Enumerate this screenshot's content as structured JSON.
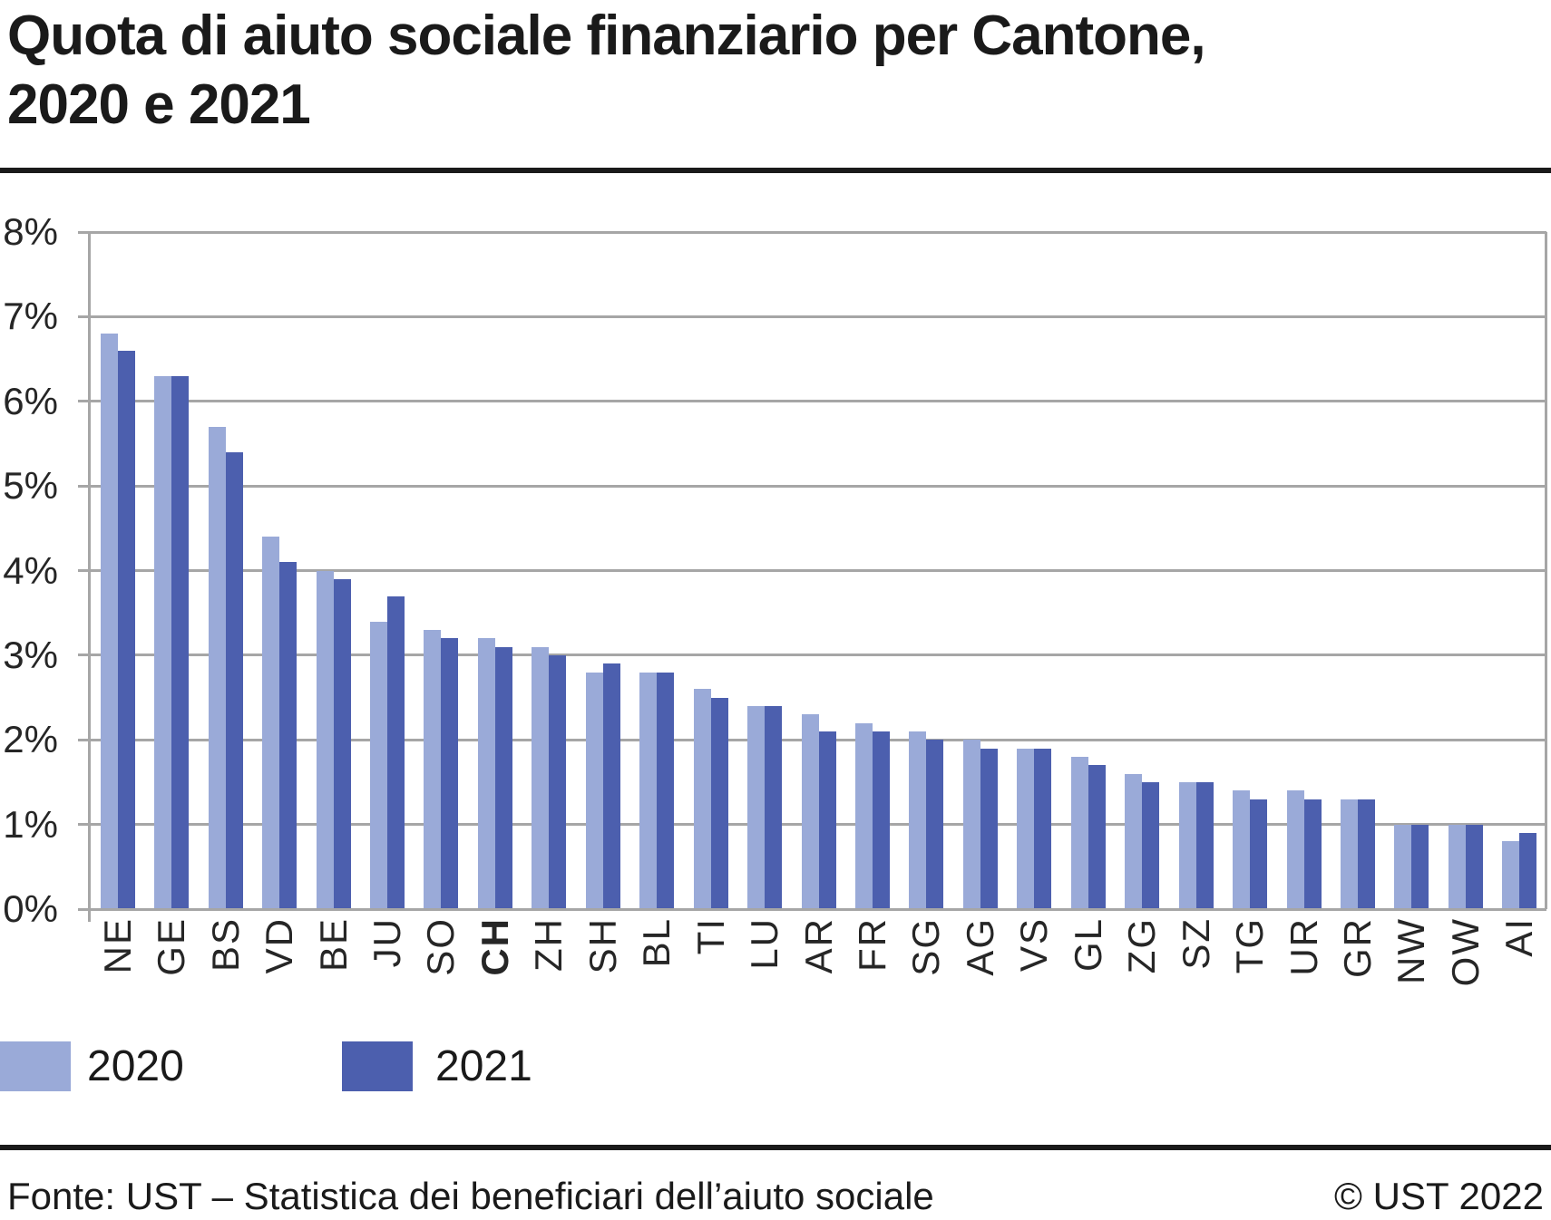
{
  "title": {
    "line1": "Quota di aiuto sociale finanziario per Cantone,",
    "line2": "2020 e 2021"
  },
  "chart_data": {
    "type": "bar",
    "grouped": true,
    "title": "Quota di aiuto sociale finanziario per Cantone, 2020 e 2021",
    "categories": [
      "NE",
      "GE",
      "BS",
      "VD",
      "BE",
      "JU",
      "SO",
      "CH",
      "ZH",
      "SH",
      "BL",
      "TI",
      "LU",
      "AR",
      "FR",
      "SG",
      "AG",
      "VS",
      "GL",
      "ZG",
      "SZ",
      "TG",
      "UR",
      "GR",
      "NW",
      "OW",
      "AI"
    ],
    "emphasized_category": "CH",
    "series": [
      {
        "name": "2020",
        "color": "#9AAAD8",
        "values": [
          6.8,
          6.3,
          5.7,
          4.4,
          4.0,
          3.4,
          3.3,
          3.2,
          3.1,
          2.8,
          2.8,
          2.6,
          2.4,
          2.3,
          2.2,
          2.1,
          2.0,
          1.9,
          1.8,
          1.6,
          1.5,
          1.4,
          1.4,
          1.3,
          1.0,
          1.0,
          0.8
        ]
      },
      {
        "name": "2021",
        "color": "#4C5FAE",
        "values": [
          6.6,
          6.3,
          5.4,
          4.1,
          3.9,
          3.7,
          3.2,
          3.1,
          3.0,
          2.9,
          2.8,
          2.5,
          2.4,
          2.1,
          2.1,
          2.0,
          1.9,
          1.9,
          1.7,
          1.5,
          1.5,
          1.3,
          1.3,
          1.3,
          1.0,
          1.0,
          0.9
        ]
      }
    ],
    "xlabel": "",
    "ylabel": "",
    "ylim": [
      0,
      8
    ],
    "ytick_step": 1,
    "ytick_suffix": "%",
    "ytick_labels": [
      "0%",
      "1%",
      "2%",
      "3%",
      "4%",
      "5%",
      "6%",
      "7%",
      "8%"
    ],
    "grid": "horizontal",
    "gridline_color": "#A6A6A6",
    "legend_position": "bottom-left"
  },
  "legend": {
    "items": [
      {
        "label": "2020",
        "color": "#9AAAD8"
      },
      {
        "label": "2021",
        "color": "#4C5FAE"
      }
    ]
  },
  "footer": {
    "source": "Fonte: UST – Statistica dei beneficiari dell’aiuto sociale",
    "copyright": "© UST 2022"
  }
}
